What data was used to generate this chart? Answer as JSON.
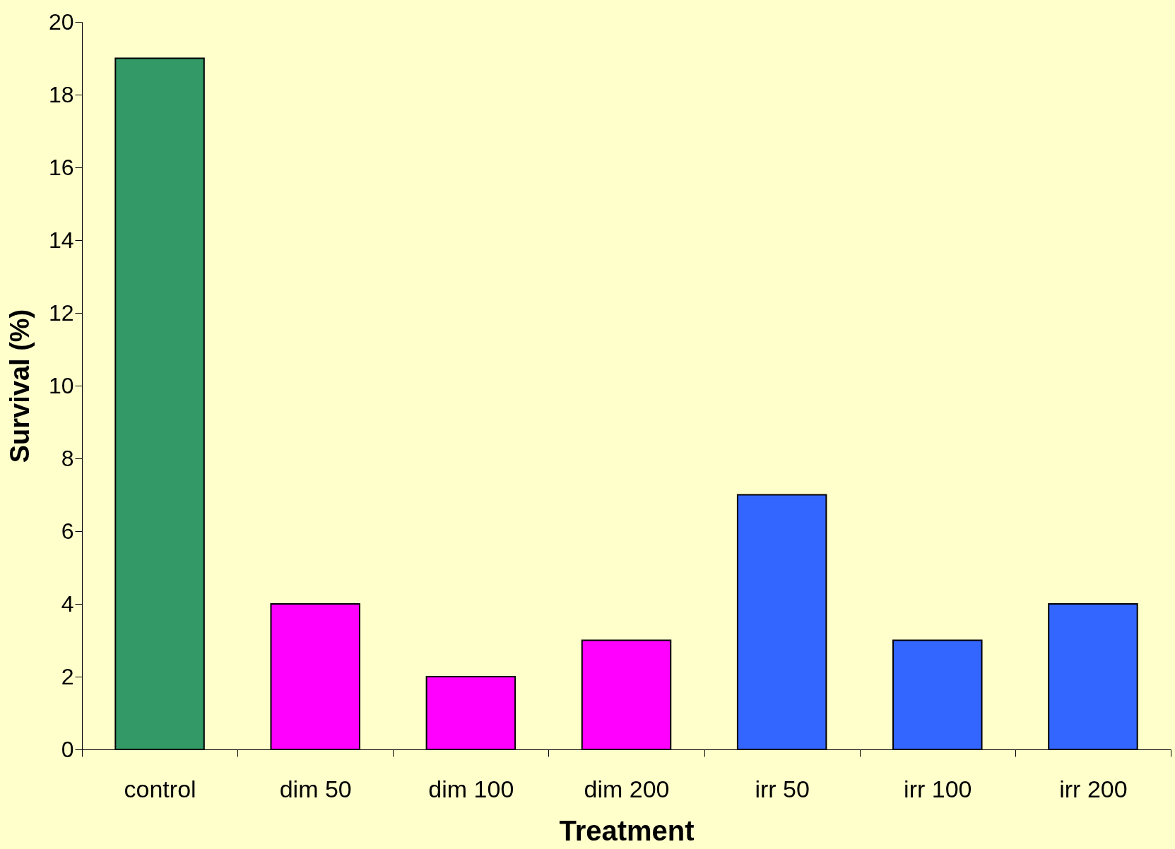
{
  "chart_data": {
    "type": "bar",
    "xlabel": "Treatment",
    "ylabel": "Survival (%)",
    "categories": [
      "control",
      "dim 50",
      "dim 100",
      "dim 200",
      "irr 50",
      "irr 100",
      "irr 200"
    ],
    "values": [
      19,
      4,
      2,
      3,
      7,
      3,
      4
    ],
    "colors": [
      "#339966",
      "#ff00ff",
      "#ff00ff",
      "#ff00ff",
      "#3366ff",
      "#3366ff",
      "#3366ff"
    ],
    "ylim": [
      0,
      20
    ],
    "yticks": [
      0,
      2,
      4,
      6,
      8,
      10,
      12,
      14,
      16,
      18,
      20
    ],
    "grid": false
  }
}
